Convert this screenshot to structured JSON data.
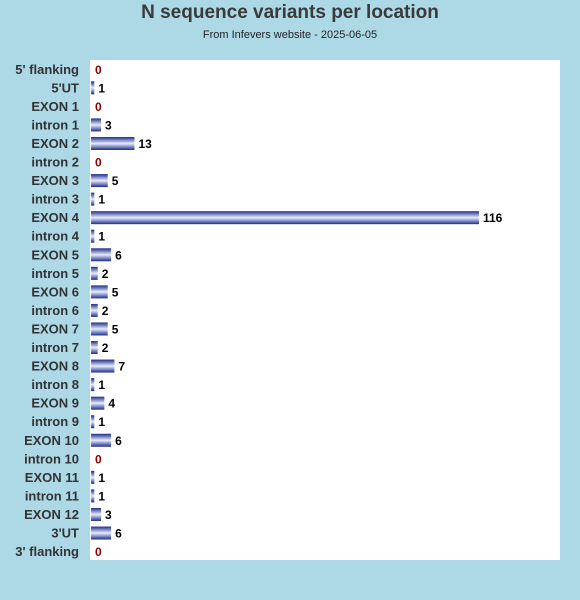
{
  "title": "N sequence variants per location",
  "subtitle": "From Infevers website - 2025-06-05",
  "colors": {
    "background": "#add8e6",
    "plot_background": "#ffffff",
    "bar_dark": "#1c2d8a",
    "bar_light": "#e8ecff",
    "zero_value": "#8b0000"
  },
  "chart_data": {
    "type": "bar",
    "orientation": "horizontal",
    "title": "N sequence variants per location",
    "subtitle": "From Infevers website - 2025-06-05",
    "xlabel": "",
    "ylabel": "",
    "xlim": [
      0,
      116
    ],
    "grid": false,
    "legend": "none",
    "categories": [
      "5' flanking",
      "5'UT",
      "EXON 1",
      "intron 1",
      "EXON 2",
      "intron 2",
      "EXON 3",
      "intron 3",
      "EXON 4",
      "intron 4",
      "EXON 5",
      "intron 5",
      "EXON 6",
      "intron 6",
      "EXON 7",
      "intron 7",
      "EXON 8",
      "intron 8",
      "EXON 9",
      "intron 9",
      "EXON 10",
      "intron 10",
      "EXON 11",
      "intron 11",
      "EXON 12",
      "3'UT",
      "3' flanking"
    ],
    "values": [
      0,
      1,
      0,
      3,
      13,
      0,
      5,
      1,
      116,
      1,
      6,
      2,
      5,
      2,
      5,
      2,
      7,
      1,
      4,
      1,
      6,
      0,
      1,
      1,
      3,
      6,
      0
    ]
  }
}
